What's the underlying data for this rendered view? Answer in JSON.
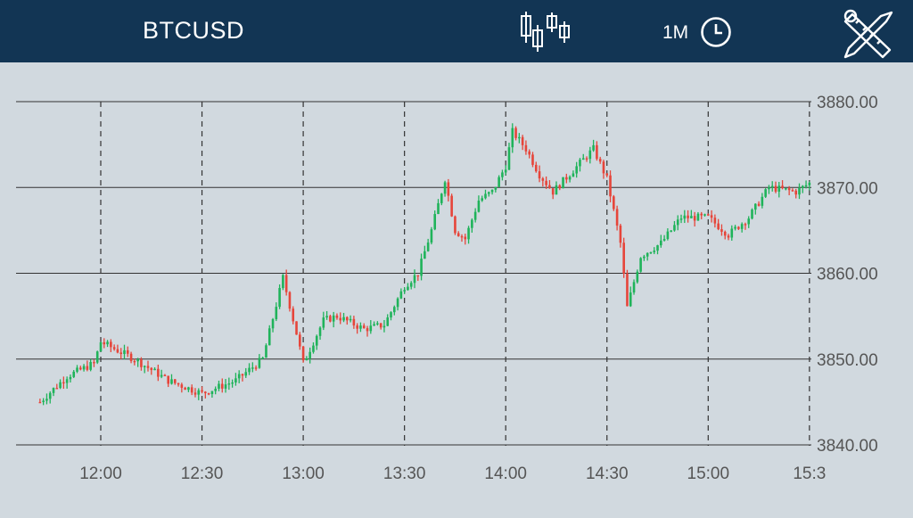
{
  "header": {
    "symbol": "BTCUSD",
    "timeframe": "1M",
    "icons": {
      "chart_type": "candlestick-icon",
      "timeframe": "clock-icon",
      "tools": "tools-icon"
    }
  },
  "colors": {
    "header_bg": "#123554",
    "chart_bg": "#d1d9df",
    "up": "#1fb35a",
    "down": "#e6453a",
    "grid": "#333333",
    "axis_text": "#555555"
  },
  "chart_data": {
    "type": "candlestick",
    "symbol": "BTCUSD",
    "timeframe": "1M",
    "y_ticks": [
      "3880.00",
      "3870.00",
      "3860.00",
      "3850.00",
      "3840.00"
    ],
    "y_range": [
      3838,
      3882
    ],
    "x_ticks": [
      "12:00",
      "12:30",
      "13:00",
      "13:30",
      "14:00",
      "14:30",
      "15:00",
      "15:3"
    ],
    "x_range": [
      "11:42",
      "15:30"
    ],
    "grid": {
      "horizontal": "solid",
      "vertical": "dashed"
    },
    "close_path": [
      [
        "11:42",
        3845.0
      ],
      [
        "11:50",
        3848.0
      ],
      [
        "11:58",
        3849.5
      ],
      [
        "12:00",
        3852.0
      ],
      [
        "12:10",
        3850.0
      ],
      [
        "12:20",
        3847.5
      ],
      [
        "12:30",
        3846.0
      ],
      [
        "12:40",
        3847.5
      ],
      [
        "12:48",
        3850.0
      ],
      [
        "12:54",
        3859.5
      ],
      [
        "12:58",
        3853.0
      ],
      [
        "13:00",
        3849.5
      ],
      [
        "13:06",
        3854.5
      ],
      [
        "13:10",
        3855.0
      ],
      [
        "13:18",
        3853.5
      ],
      [
        "13:24",
        3854.0
      ],
      [
        "13:30",
        3858.5
      ],
      [
        "13:34",
        3860.0
      ],
      [
        "13:38",
        3865.0
      ],
      [
        "13:42",
        3871.0
      ],
      [
        "13:45",
        3865.0
      ],
      [
        "13:48",
        3864.0
      ],
      [
        "13:52",
        3868.5
      ],
      [
        "13:56",
        3869.5
      ],
      [
        "14:00",
        3872.5
      ],
      [
        "14:02",
        3876.5
      ],
      [
        "14:06",
        3874.5
      ],
      [
        "14:10",
        3871.5
      ],
      [
        "14:14",
        3869.5
      ],
      [
        "14:20",
        3872.0
      ],
      [
        "14:26",
        3874.5
      ],
      [
        "14:30",
        3871.0
      ],
      [
        "14:34",
        3863.5
      ],
      [
        "14:36",
        3856.0
      ],
      [
        "14:40",
        3862.0
      ],
      [
        "14:46",
        3863.5
      ],
      [
        "14:52",
        3866.5
      ],
      [
        "15:00",
        3866.5
      ],
      [
        "15:06",
        3864.5
      ],
      [
        "15:12",
        3866.5
      ],
      [
        "15:18",
        3870.0
      ],
      [
        "15:26",
        3869.5
      ],
      [
        "15:30",
        3870.5
      ]
    ]
  }
}
